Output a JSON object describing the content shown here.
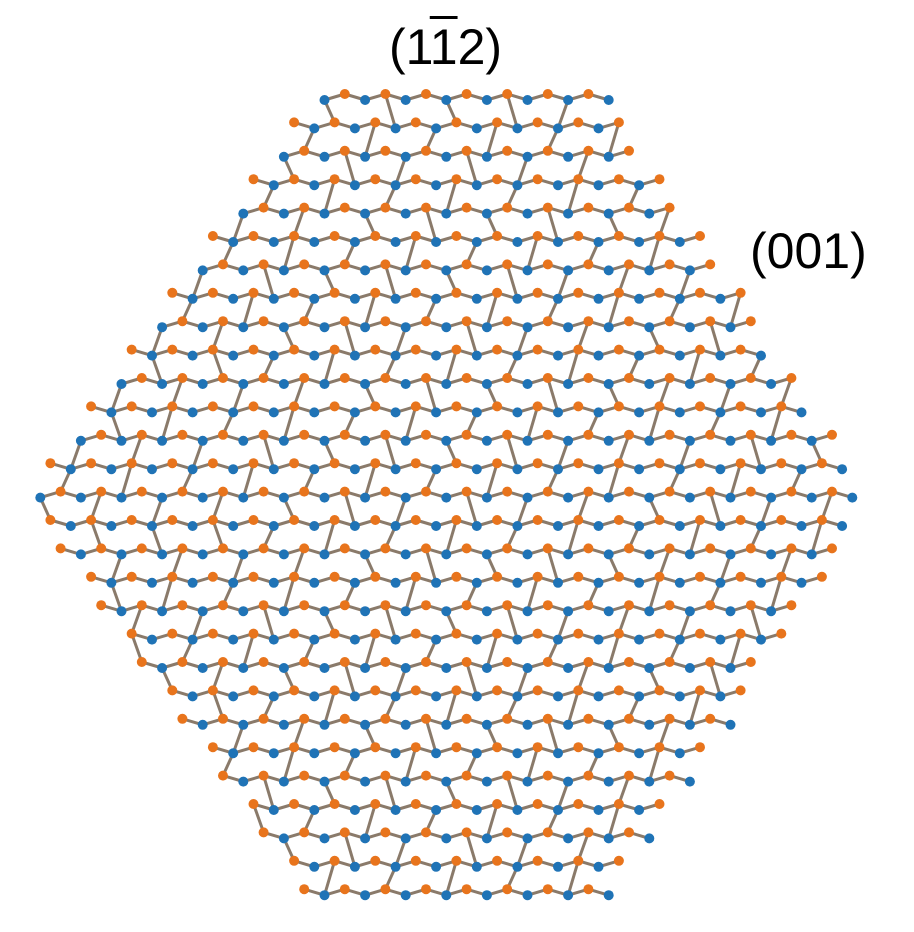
{
  "labels": {
    "top": {
      "pre": "(1",
      "bar": "1",
      "post": "2)"
    },
    "right": "(001)"
  },
  "colors": {
    "orange_atom": "#e8741c",
    "blue_atom": "#1f73b6",
    "background": "#ffffff"
  }
}
